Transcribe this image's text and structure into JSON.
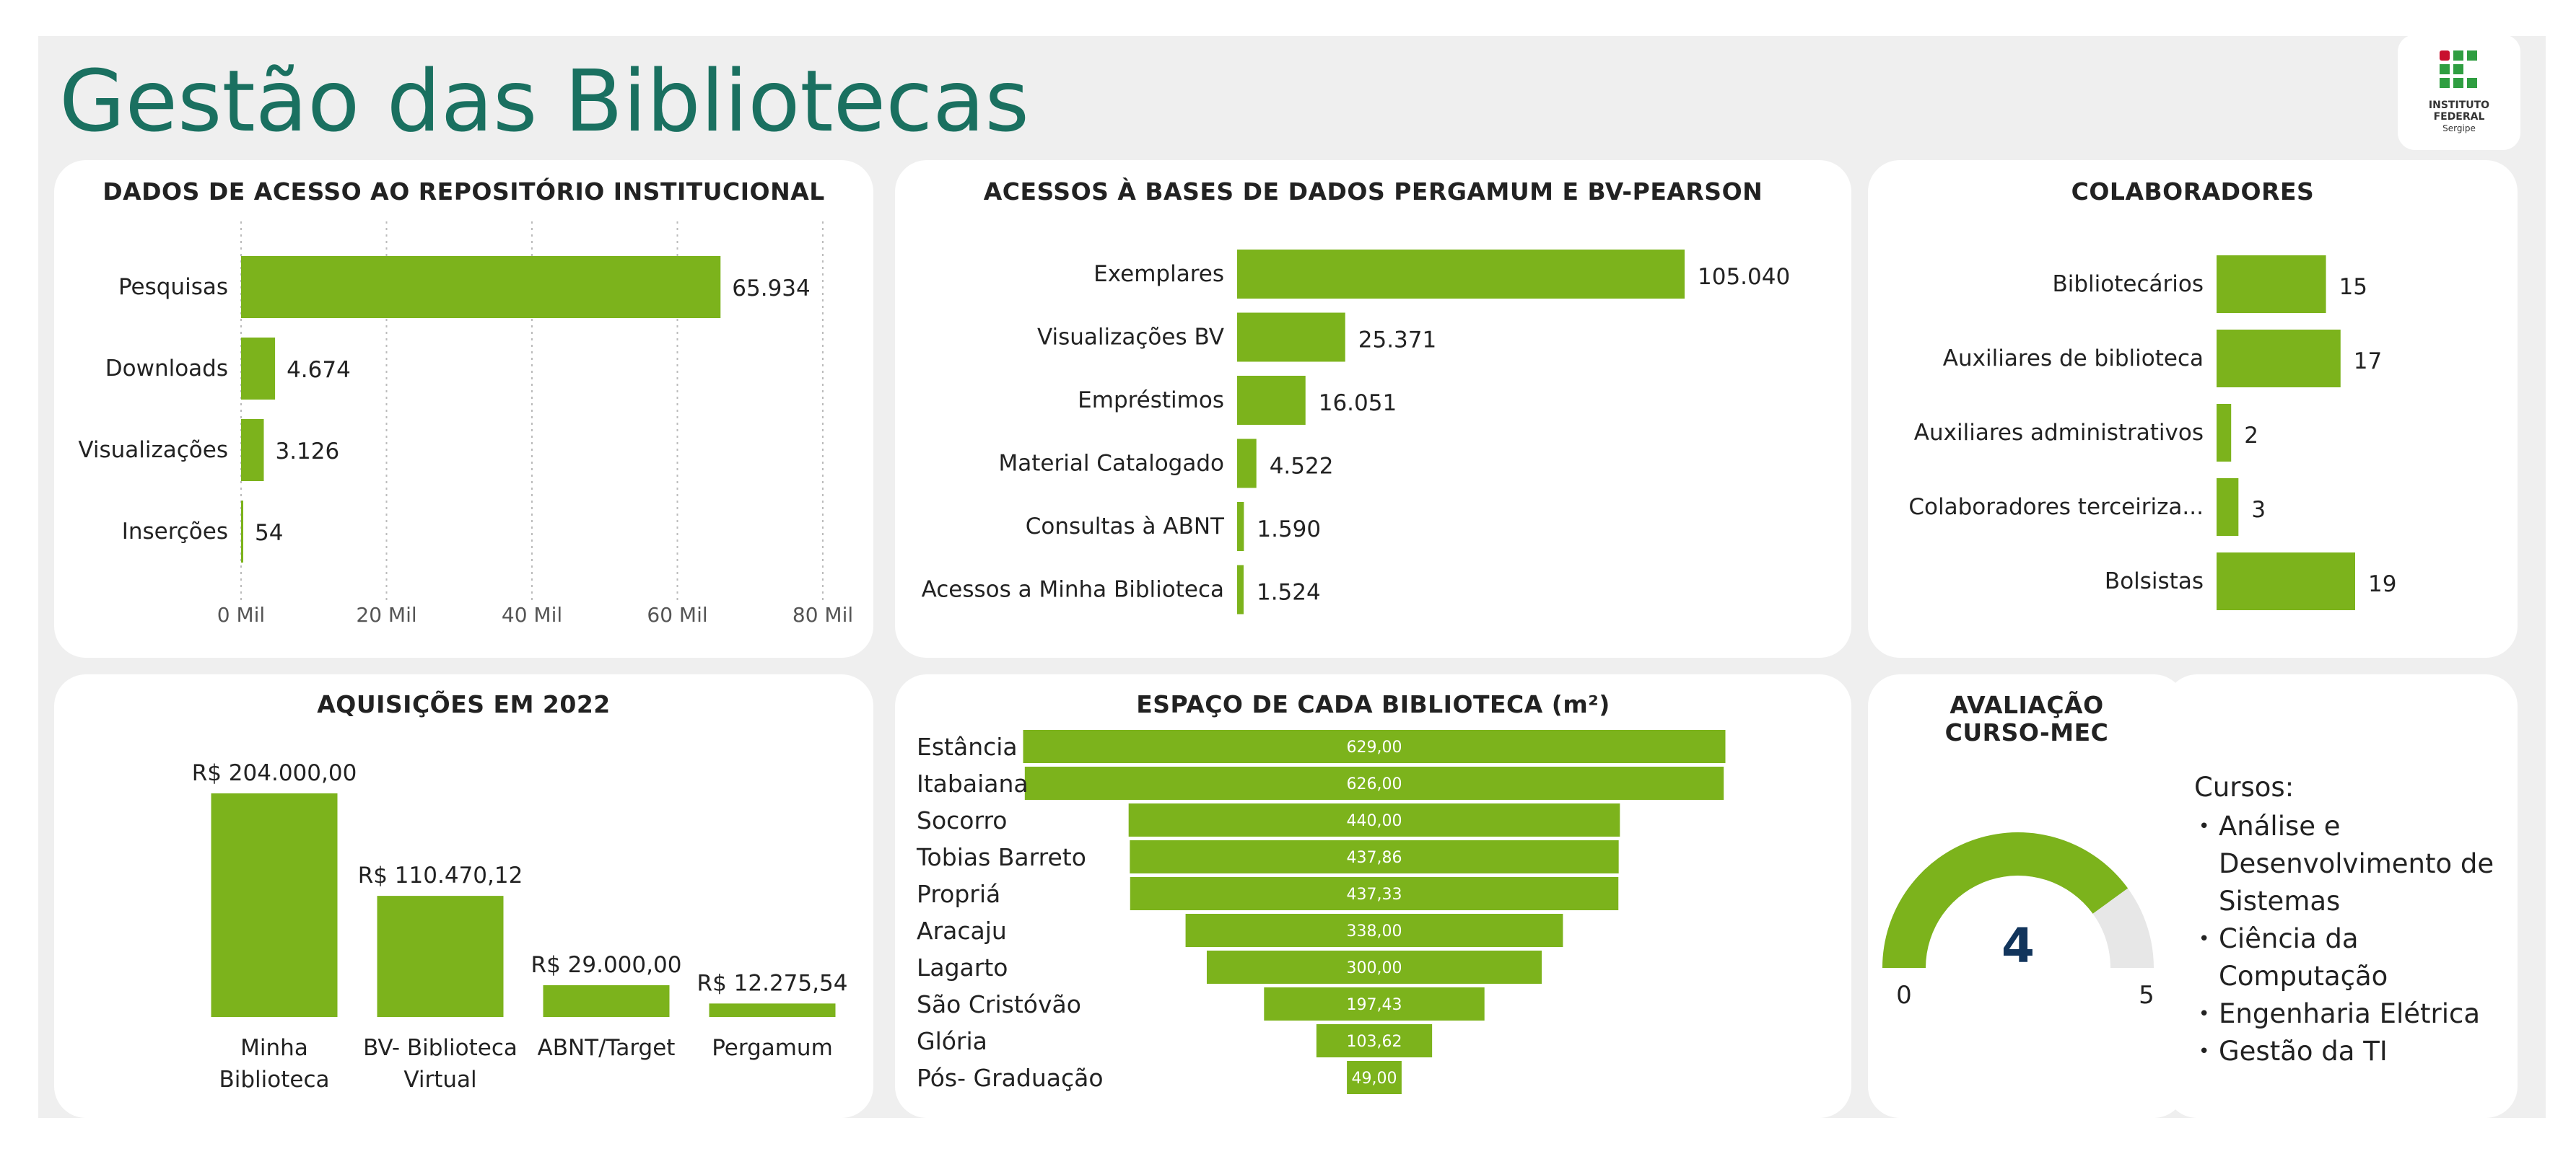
{
  "page": {
    "title": "Gestão das Bibliotecas"
  },
  "logo": {
    "line1": "INSTITUTO",
    "line2": "FEDERAL",
    "line3": "Sergipe"
  },
  "colors": {
    "bar": "#7cb31c",
    "title": "#1a7060",
    "gauge_bg": "#e7e7e7",
    "gauge_value": "#12355c"
  },
  "chart_data": [
    {
      "id": "repositorio",
      "type": "bar",
      "orientation": "horizontal",
      "title": "DADOS DE ACESSO AO REPOSITÓRIO INSTITUCIONAL",
      "categories": [
        "Pesquisas",
        "Downloads",
        "Visualizações",
        "Inserções"
      ],
      "values": [
        65934,
        4674,
        3126,
        54
      ],
      "data_labels": [
        "65.934",
        "4.674",
        "3.126",
        "54"
      ],
      "xlim": [
        0,
        80000
      ],
      "ticks": [
        0,
        20000,
        40000,
        60000,
        80000
      ],
      "tick_labels": [
        "0 Mil",
        "20 Mil",
        "40 Mil",
        "60 Mil",
        "80 Mil"
      ],
      "grid": "vertical dotted"
    },
    {
      "id": "bases",
      "type": "bar",
      "orientation": "horizontal",
      "title": "ACESSOS À BASES DE DADOS PERGAMUM E BV-PEARSON",
      "categories": [
        "Exemplares",
        "Visualizações BV",
        "Empréstimos",
        "Material Catalogado",
        "Consultas à ABNT",
        "Acessos a Minha Biblioteca"
      ],
      "values": [
        105040,
        25371,
        16051,
        4522,
        1590,
        1524
      ],
      "data_labels": [
        "105.040",
        "25.371",
        "16.051",
        "4.522",
        "1.590",
        "1.524"
      ]
    },
    {
      "id": "colaboradores",
      "type": "bar",
      "orientation": "horizontal",
      "title": "COLABORADORES",
      "categories": [
        "Bibliotecários",
        "Auxiliares de biblioteca",
        "Auxiliares administrativos",
        "Colaboradores terceiriza...",
        "Bolsistas"
      ],
      "values": [
        15,
        17,
        2,
        3,
        19
      ],
      "data_labels": [
        "15",
        "17",
        "2",
        "3",
        "19"
      ]
    },
    {
      "id": "aquisicoes",
      "type": "bar",
      "orientation": "vertical",
      "title": "AQUISIÇÕES EM 2022",
      "categories": [
        [
          "Minha",
          "Biblioteca"
        ],
        [
          "BV- Biblioteca",
          "Virtual"
        ],
        [
          "ABNT/Target"
        ],
        [
          "Pergamum"
        ]
      ],
      "values": [
        204000.0,
        110470.12,
        29000.0,
        12275.54
      ],
      "data_labels": [
        "R$ 204.000,00",
        "R$ 110.470,12",
        "R$ 29.000,00",
        "R$ 12.275,54"
      ]
    },
    {
      "id": "espaco",
      "type": "bar",
      "orientation": "funnel",
      "title": "ESPAÇO DE CADA BIBLIOTECA (m²)",
      "categories": [
        "Estância",
        "Itabaiana",
        "Socorro",
        "Tobias Barreto",
        "Propriá",
        "Aracaju",
        "Lagarto",
        "São Cristóvão",
        "Glória",
        "Pós- Graduação"
      ],
      "values": [
        629.0,
        626.0,
        440.0,
        437.86,
        437.33,
        338.0,
        300.0,
        197.43,
        103.62,
        49.0
      ],
      "data_labels": [
        "629,00",
        "626,00",
        "440,00",
        "437,86",
        "437,33",
        "338,00",
        "300,00",
        "197,43",
        "103,62",
        "49,00"
      ]
    },
    {
      "id": "avaliacao",
      "type": "gauge",
      "title_lines": [
        "AVALIAÇÃO",
        "CURSO-MEC"
      ],
      "value": 4,
      "value_label": "4",
      "min": 0,
      "max": 5,
      "min_label": "0",
      "max_label": "5"
    }
  ],
  "courses": {
    "label": "Cursos:",
    "items": [
      "Análise e Desenvolvimento  de Sistemas",
      "Ciência da Computação",
      "Engenharia Elétrica",
      "Gestão da TI"
    ]
  }
}
